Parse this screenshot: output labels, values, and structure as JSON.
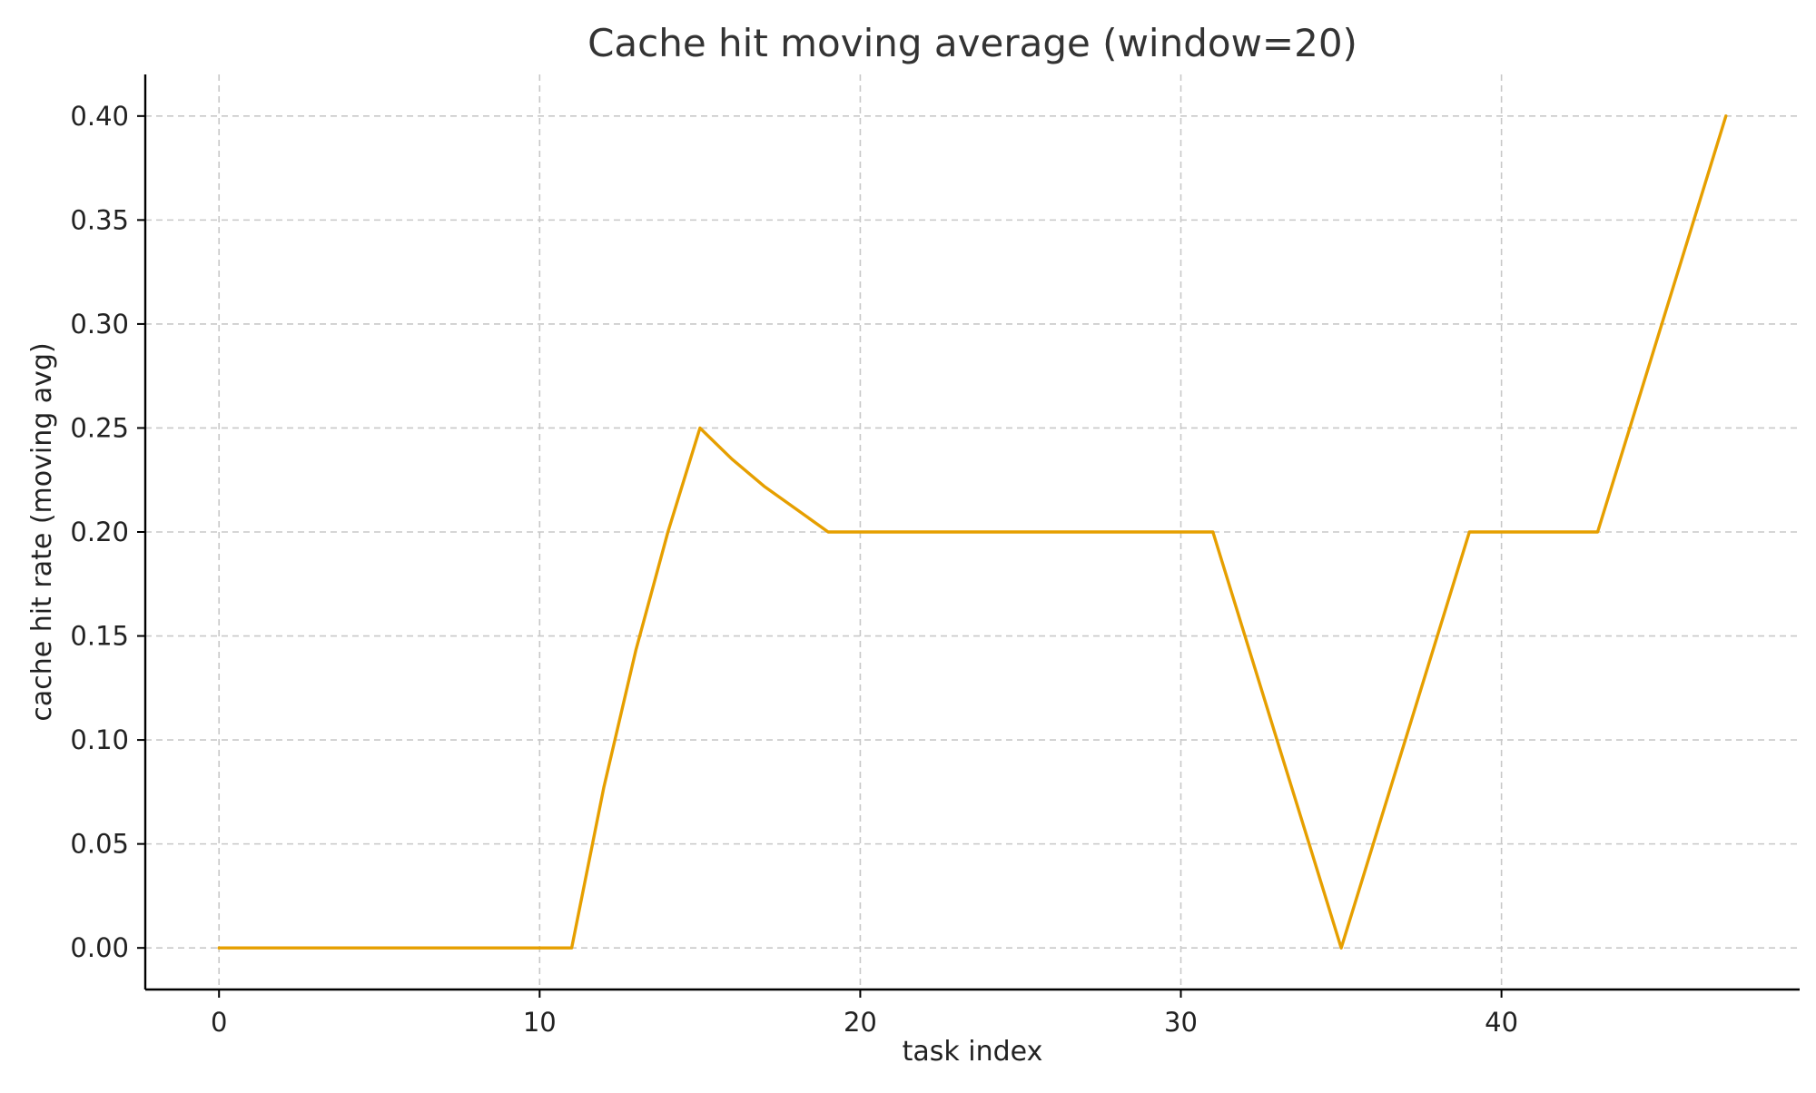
{
  "chart_data": {
    "type": "line",
    "title": "Cache hit moving average (window=20)",
    "xlabel": "task index",
    "ylabel": "cache hit rate (moving avg)",
    "xlim": [
      -2.3,
      49.3
    ],
    "ylim": [
      -0.02,
      0.42
    ],
    "xticks": [
      0,
      10,
      20,
      30,
      40
    ],
    "xtick_labels": [
      "0",
      "10",
      "20",
      "30",
      "40"
    ],
    "yticks": [
      0.0,
      0.05,
      0.1,
      0.15,
      0.2,
      0.25,
      0.3,
      0.35,
      0.4
    ],
    "ytick_labels": [
      "0.00",
      "0.05",
      "0.10",
      "0.15",
      "0.20",
      "0.25",
      "0.30",
      "0.35",
      "0.40"
    ],
    "grid": true,
    "legend": "none",
    "series": [
      {
        "color": "#E69F00",
        "x": [
          0,
          1,
          2,
          3,
          4,
          5,
          6,
          7,
          8,
          9,
          10,
          11,
          12,
          13,
          14,
          15,
          16,
          17,
          18,
          19,
          20,
          21,
          22,
          23,
          24,
          25,
          26,
          27,
          28,
          29,
          30,
          31,
          32,
          33,
          34,
          35,
          36,
          37,
          38,
          39,
          40,
          41,
          42,
          43,
          44,
          45,
          46,
          47
        ],
        "y": [
          0,
          0,
          0,
          0,
          0,
          0,
          0,
          0,
          0,
          0,
          0,
          0,
          0.077,
          0.143,
          0.2,
          0.25,
          0.235,
          0.222,
          0.211,
          0.2,
          0.2,
          0.2,
          0.2,
          0.2,
          0.2,
          0.2,
          0.2,
          0.2,
          0.2,
          0.2,
          0.2,
          0.2,
          0.15,
          0.1,
          0.05,
          0,
          0.05,
          0.1,
          0.15,
          0.2,
          0.2,
          0.2,
          0.2,
          0.2,
          0.25,
          0.3,
          0.35,
          0.4
        ]
      }
    ]
  }
}
